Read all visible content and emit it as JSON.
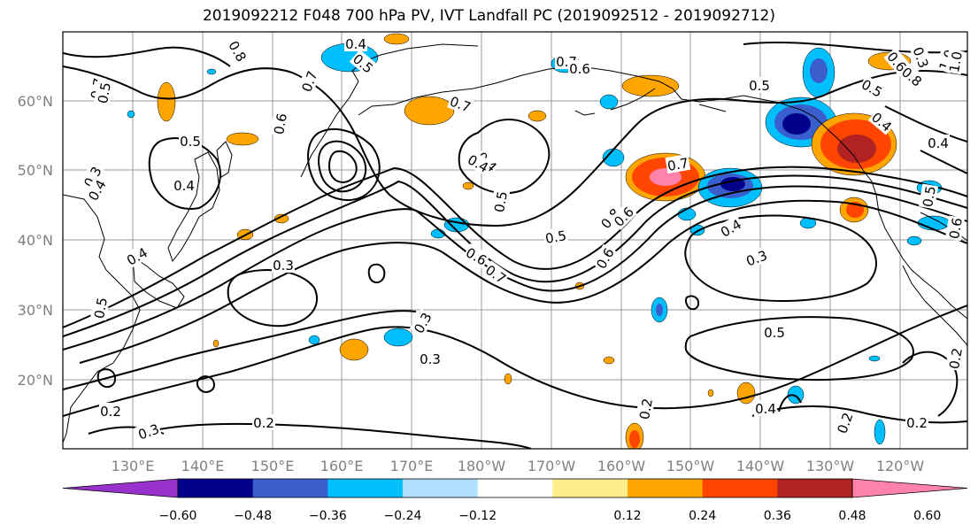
{
  "title": "2019092212 F048 700 hPa PV, IVT Landfall PC (2019092512 - 2019092712)",
  "map": {
    "projection": "cylindrical",
    "lat_labels": [
      "60°N",
      "50°N",
      "40°N",
      "30°N",
      "20°N"
    ],
    "lon_labels": [
      "130°E",
      "140°E",
      "150°E",
      "160°E",
      "170°E",
      "180°W",
      "170°W",
      "160°W",
      "150°W",
      "140°W",
      "130°W",
      "120°W"
    ],
    "contour_labels": [
      "0.4",
      "0.8",
      "0.5",
      "0.7",
      "0.7",
      "0.7",
      "0.7",
      "0.6",
      "0.3",
      "0.5",
      "0.6",
      "1.0",
      "0.8",
      "0.6",
      "1.0",
      "0.5",
      "0.5",
      "0.4",
      "0.4",
      "0.3",
      "0.4",
      "0.7",
      "0.4",
      "0.5",
      "0.5",
      "0.6",
      "0.7",
      "0.8",
      "0.6",
      "0.5",
      "0.4",
      "0.4",
      "0.3",
      "0.6",
      "0.5",
      "0.6",
      "0.4",
      "0.3",
      "0.4",
      "0.5",
      "0.3",
      "0.3",
      "0.5",
      "0.2",
      "0.2",
      "0.3",
      "0.2",
      "0.4",
      "0.2",
      "0.2",
      "0.2"
    ]
  },
  "colorbar": {
    "ticks": [
      "−0.60",
      "−0.48",
      "−0.36",
      "−0.24",
      "−0.12",
      "0.12",
      "0.24",
      "0.36",
      "0.48",
      "0.60"
    ],
    "colors": [
      "#9932cc",
      "#00008b",
      "#3a5fcd",
      "#00bfff",
      "#b0e2ff",
      "#ffffff",
      "#ffec8b",
      "#ffa500",
      "#ff4500",
      "#b22222",
      "#ff82ab"
    ]
  }
}
